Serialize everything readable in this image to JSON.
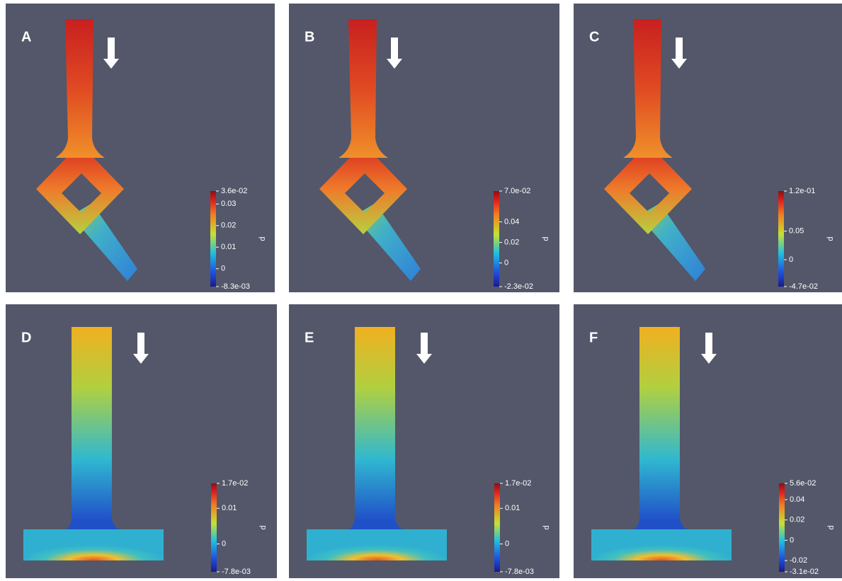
{
  "panels": [
    {
      "label": "A",
      "colorbar": {
        "title": "p",
        "lim": [
          -0.0083,
          0.036
        ],
        "ticks": [
          {
            "value": 0.036,
            "label": "3.6e-02"
          },
          0.03,
          0.02,
          0.01,
          0,
          {
            "value": -0.0083,
            "label": "-8.3e-03"
          }
        ]
      }
    },
    {
      "label": "B",
      "colorbar": {
        "title": "p",
        "lim": [
          -0.023,
          0.07
        ],
        "ticks": [
          {
            "value": 0.07,
            "label": "7.0e-02"
          },
          0.04,
          0.02,
          0,
          {
            "value": -0.023,
            "label": "-2.3e-02"
          }
        ]
      }
    },
    {
      "label": "C",
      "colorbar": {
        "title": "p",
        "lim": [
          -0.047,
          0.12
        ],
        "ticks": [
          {
            "value": 0.12,
            "label": "1.2e-01"
          },
          0.05,
          0,
          {
            "value": -0.047,
            "label": "-4.7e-02"
          }
        ]
      }
    },
    {
      "label": "D",
      "colorbar": {
        "title": "p",
        "lim": [
          -0.0078,
          0.017
        ],
        "ticks": [
          {
            "value": 0.017,
            "label": "1.7e-02"
          },
          0.01,
          0,
          {
            "value": -0.0078,
            "label": "-7.8e-03"
          }
        ]
      }
    },
    {
      "label": "E",
      "colorbar": {
        "title": "p",
        "lim": [
          -0.0078,
          0.017
        ],
        "ticks": [
          {
            "value": 0.017,
            "label": "1.7e-02"
          },
          0.01,
          0,
          {
            "value": -0.0078,
            "label": "-7.8e-03"
          }
        ]
      }
    },
    {
      "label": "F",
      "colorbar": {
        "title": "p",
        "lim": [
          -0.031,
          0.056
        ],
        "ticks": [
          {
            "value": 0.056,
            "label": "5.6e-02"
          },
          0.04,
          0.02,
          0,
          -0.02,
          {
            "value": -0.031,
            "label": "-3.1e-02"
          }
        ]
      }
    }
  ]
}
